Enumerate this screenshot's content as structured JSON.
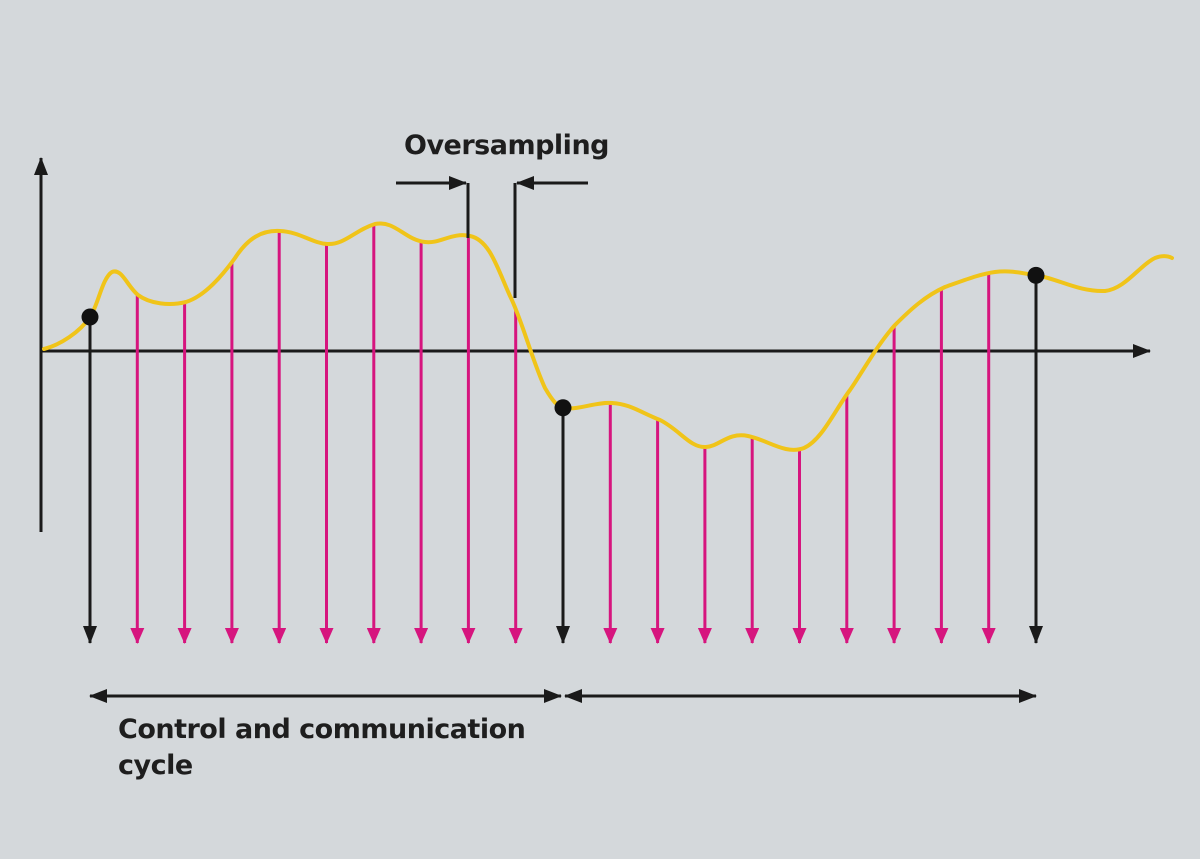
{
  "labels": {
    "oversampling": "Oversampling",
    "cycle_line1": "Control and communication",
    "cycle_line2": "cycle"
  },
  "colors": {
    "background": "#d4d8db",
    "signal": "#f0c419",
    "oversample_arrow": "#d6157e",
    "cycle_arrow": "#1a1a1a",
    "axis": "#1a1a1a"
  },
  "diagram": {
    "type": "signal-sampling",
    "cycles": 2,
    "oversamples_per_cycle": 10,
    "cycle_sample_indices": [
      0,
      10,
      20
    ],
    "sample_count": 21
  }
}
